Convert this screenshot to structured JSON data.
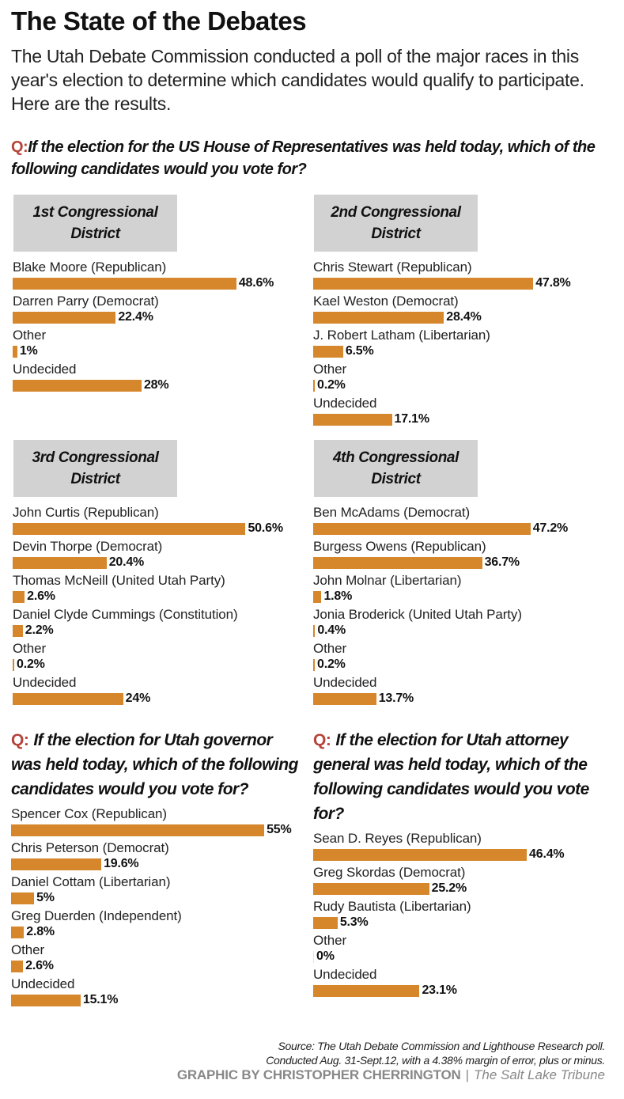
{
  "header": {
    "title": "The State of the Debates",
    "intro": "The Utah Debate Commission conducted a poll of the major races in this year's election to determine which candidates would qualify to participate. Here are the results."
  },
  "colors": {
    "bar": "#d6862b",
    "q_marker": "#b5453a",
    "district_box": "#d2d2d3"
  },
  "house_question": {
    "marker": "Q:",
    "text": "If the election for the US House of Representatives was held today, which of the following candidates would you vote for?"
  },
  "chart_data": [
    {
      "type": "bar",
      "orientation": "horizontal",
      "title": "1st Congressional District",
      "title_line1": "1st Congressional",
      "title_line2": "District",
      "categories": [
        "Blake Moore (Republican)",
        "Darren Parry (Democrat)",
        "Other",
        "Undecided"
      ],
      "values": [
        48.6,
        22.4,
        1,
        28
      ],
      "labels": [
        "48.6%",
        "22.4%",
        "1%",
        "28%"
      ],
      "unit": "%"
    },
    {
      "type": "bar",
      "orientation": "horizontal",
      "title": "2nd Congressional District",
      "title_line1": "2nd Congressional",
      "title_line2": "District",
      "categories": [
        "Chris Stewart (Republican)",
        "Kael Weston (Democrat)",
        "J. Robert Latham (Libertarian)",
        "Other",
        "Undecided"
      ],
      "values": [
        47.8,
        28.4,
        6.5,
        0.2,
        17.1
      ],
      "labels": [
        "47.8%",
        "28.4%",
        "6.5%",
        "0.2%",
        "17.1%"
      ],
      "unit": "%"
    },
    {
      "type": "bar",
      "orientation": "horizontal",
      "title": "3rd Congressional District",
      "title_line1": "3rd Congressional",
      "title_line2": "District",
      "categories": [
        "John Curtis (Republican)",
        "Devin Thorpe (Democrat)",
        "Thomas McNeill (United Utah Party)",
        "Daniel Clyde Cummings (Constitution)",
        "Other",
        "Undecided"
      ],
      "values": [
        50.6,
        20.4,
        2.6,
        2.2,
        0.2,
        24
      ],
      "labels": [
        "50.6%",
        "20.4%",
        "2.6%",
        "2.2%",
        "0.2%",
        "24%"
      ],
      "unit": "%"
    },
    {
      "type": "bar",
      "orientation": "horizontal",
      "title": "4th Congressional District",
      "title_line1": "4th Congressional",
      "title_line2": "District",
      "categories": [
        "Ben McAdams (Democrat)",
        "Burgess Owens (Republican)",
        "John Molnar (Libertarian)",
        "Jonia Broderick (United Utah Party)",
        "Other",
        "Undecided"
      ],
      "values": [
        47.2,
        36.7,
        1.8,
        0.4,
        0.2,
        13.7
      ],
      "labels": [
        "47.2%",
        "36.7%",
        "1.8%",
        "0.4%",
        "0.2%",
        "13.7%"
      ],
      "unit": "%"
    },
    {
      "type": "bar",
      "orientation": "horizontal",
      "title": "Utah governor",
      "question_marker": "Q:",
      "question": "If the election for Utah governor was held today, which of the following candidates would you vote for?",
      "categories": [
        "Spencer Cox (Republican)",
        "Chris Peterson (Democrat)",
        "Daniel Cottam (Libertarian)",
        "Greg Duerden (Independent)",
        "Other",
        "Undecided"
      ],
      "values": [
        55,
        19.6,
        5,
        2.8,
        2.6,
        15.1
      ],
      "labels": [
        "55%",
        "19.6%",
        "5%",
        "2.8%",
        "2.6%",
        "15.1%"
      ],
      "unit": "%"
    },
    {
      "type": "bar",
      "orientation": "horizontal",
      "title": "Utah attorney general",
      "question_marker": "Q:",
      "question": "If the election for Utah attorney general was held today, which of the following candidates would you vote for?",
      "categories": [
        "Sean D. Reyes (Republican)",
        "Greg Skordas (Democrat)",
        "Rudy Bautista (Libertarian)",
        "Other",
        "Undecided"
      ],
      "values": [
        46.4,
        25.2,
        5.3,
        0,
        23.1
      ],
      "labels": [
        "46.4%",
        "25.2%",
        "5.3%",
        "0%",
        "23.1%"
      ],
      "unit": "%"
    }
  ],
  "footer": {
    "source_line1": "Source: The Utah Debate Commission and Lighthouse Research poll.",
    "source_line2": "Conducted Aug. 31-Sept.12, with a 4.38% margin of error, plus or minus.",
    "credit": "GRAPHIC BY CHRISTOPHER CHERRINGTON",
    "separator": "|",
    "publication": "The Salt Lake Tribune"
  }
}
